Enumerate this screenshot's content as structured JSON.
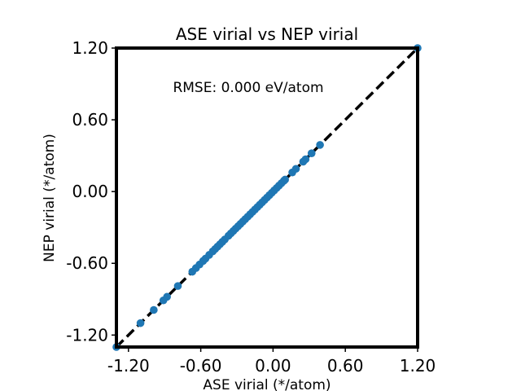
{
  "chart_data": {
    "type": "scatter",
    "title": "ASE virial vs NEP virial",
    "xlabel": "ASE virial (*/atom)",
    "ylabel": "NEP virial (*/atom)",
    "xlim": [
      -1.3,
      1.2
    ],
    "ylim": [
      -1.3,
      1.2
    ],
    "xticks": [
      -1.2,
      -0.6,
      0.0,
      0.6,
      1.2
    ],
    "xtick_labels": [
      "-1.20",
      "-0.60",
      "0.00",
      "0.60",
      "1.20"
    ],
    "yticks": [
      -1.2,
      -0.6,
      0.0,
      0.6,
      1.2
    ],
    "ytick_labels": [
      "-1.20",
      "-0.60",
      "0.00",
      "0.60",
      "1.20"
    ],
    "annotation": "RMSE: 0.000 eV/atom",
    "grid": false,
    "reference_line": {
      "style": "dashed",
      "color": "#000000",
      "from": [
        -1.3,
        -1.3
      ],
      "to": [
        1.2,
        1.2
      ]
    },
    "series": [
      {
        "color": "#1f77b4",
        "points": [
          [
            -1.3,
            -1.3
          ],
          [
            -1.1,
            -1.1
          ],
          [
            -0.99,
            -0.99
          ],
          [
            -0.91,
            -0.91
          ],
          [
            -0.88,
            -0.88
          ],
          [
            -0.79,
            -0.79
          ],
          [
            -0.67,
            -0.67
          ],
          [
            -0.64,
            -0.64
          ],
          [
            -0.61,
            -0.61
          ],
          [
            -0.58,
            -0.58
          ],
          [
            -0.56,
            -0.56
          ],
          [
            -0.53,
            -0.53
          ],
          [
            -0.5,
            -0.5
          ],
          [
            -0.48,
            -0.48
          ],
          [
            -0.46,
            -0.46
          ],
          [
            -0.44,
            -0.44
          ],
          [
            -0.42,
            -0.42
          ],
          [
            -0.4,
            -0.4
          ],
          [
            -0.37,
            -0.37
          ],
          [
            -0.35,
            -0.35
          ],
          [
            -0.33,
            -0.33
          ],
          [
            -0.31,
            -0.31
          ],
          [
            -0.29,
            -0.29
          ],
          [
            -0.27,
            -0.27
          ],
          [
            -0.25,
            -0.25
          ],
          [
            -0.23,
            -0.23
          ],
          [
            -0.21,
            -0.21
          ],
          [
            -0.19,
            -0.19
          ],
          [
            -0.17,
            -0.17
          ],
          [
            -0.15,
            -0.15
          ],
          [
            -0.13,
            -0.13
          ],
          [
            -0.11,
            -0.11
          ],
          [
            -0.09,
            -0.09
          ],
          [
            -0.07,
            -0.07
          ],
          [
            -0.05,
            -0.05
          ],
          [
            -0.03,
            -0.03
          ],
          [
            -0.01,
            -0.01
          ],
          [
            0.01,
            0.01
          ],
          [
            0.03,
            0.03
          ],
          [
            0.05,
            0.05
          ],
          [
            0.07,
            0.07
          ],
          [
            0.09,
            0.09
          ],
          [
            0.1,
            0.1
          ],
          [
            0.16,
            0.16
          ],
          [
            0.19,
            0.19
          ],
          [
            0.25,
            0.25
          ],
          [
            0.27,
            0.27
          ],
          [
            0.32,
            0.32
          ],
          [
            0.39,
            0.39
          ],
          [
            1.2,
            1.2
          ]
        ]
      }
    ]
  }
}
